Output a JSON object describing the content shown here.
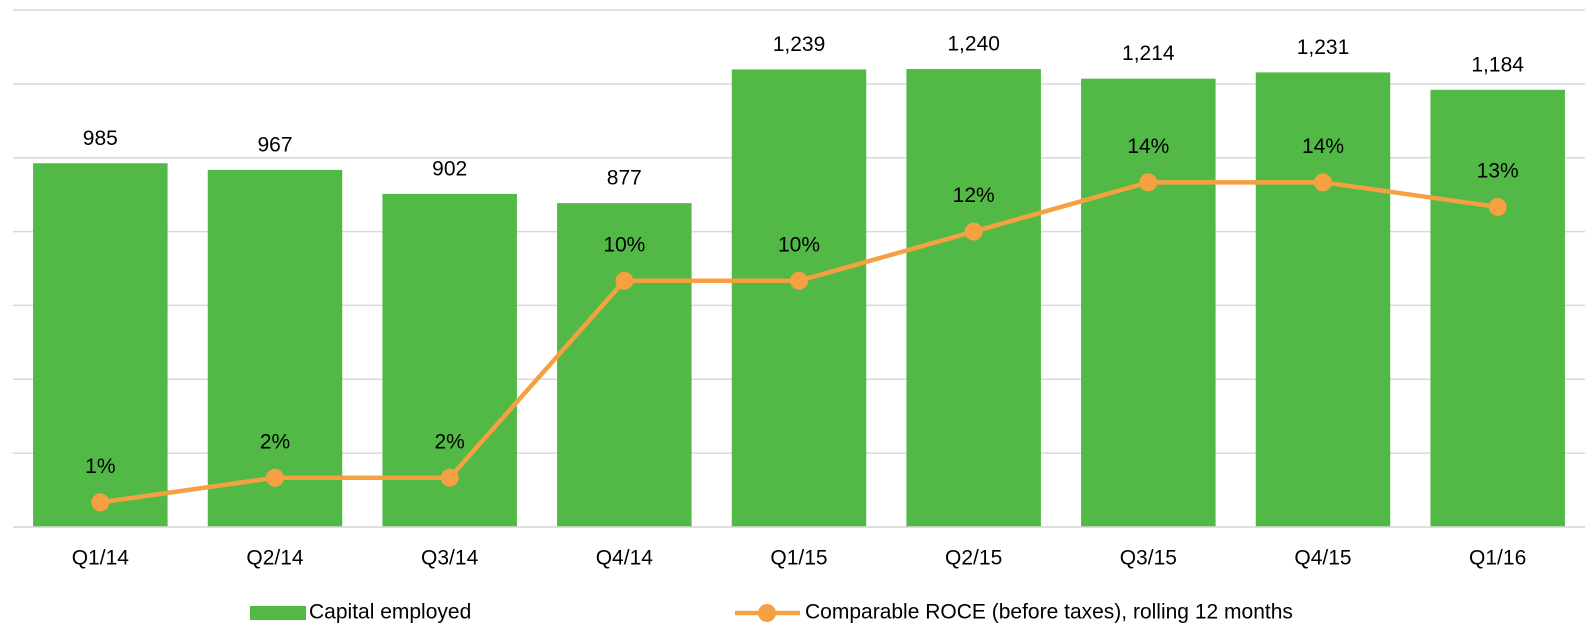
{
  "chart_data": {
    "type": "bar_line",
    "categories": [
      "Q1/14",
      "Q2/14",
      "Q3/14",
      "Q4/14",
      "Q1/15",
      "Q2/15",
      "Q3/15",
      "Q4/15",
      "Q1/16"
    ],
    "series": [
      {
        "name": "Capital employed",
        "type": "bar",
        "color": "#52b947",
        "values": [
          985,
          967,
          902,
          877,
          1239,
          1240,
          1214,
          1231,
          1184
        ],
        "value_labels": [
          "985",
          "967",
          "902",
          "877",
          "1,239",
          "1,240",
          "1,214",
          "1,231",
          "1,184"
        ]
      },
      {
        "name": "Comparable ROCE (before taxes), rolling 12 months",
        "type": "line",
        "axis": "y2",
        "color": "#f5a142",
        "values": [
          1,
          2,
          2,
          10,
          10,
          12,
          14,
          14,
          13
        ],
        "value_labels": [
          "1%",
          "2%",
          "2%",
          "10%",
          "10%",
          "12%",
          "14%",
          "14%",
          "13%"
        ]
      }
    ],
    "ylim": [
      0,
      1400
    ],
    "yticks": [
      0,
      200,
      400,
      600,
      800,
      1000,
      1200,
      1400
    ],
    "y2lim": [
      0,
      21
    ],
    "grid": true,
    "legend": "bottom"
  }
}
